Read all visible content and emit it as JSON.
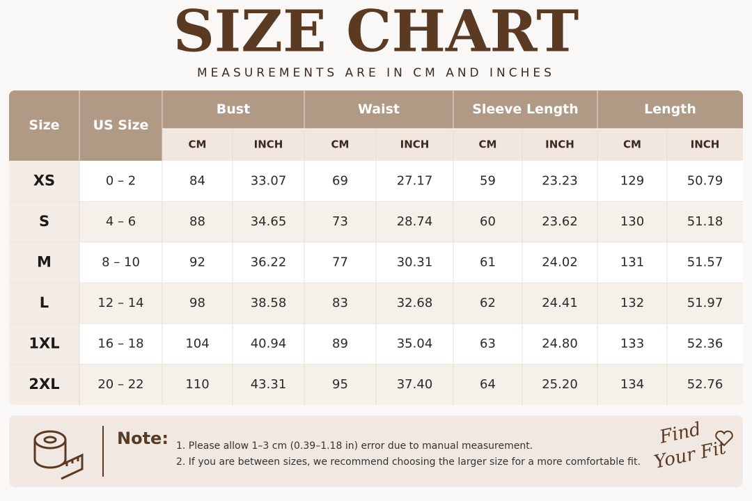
{
  "header": {
    "title": "SIZE CHART",
    "subtitle": "MEASUREMENTS ARE IN CM AND INCHES"
  },
  "table": {
    "columns": [
      "Size",
      "US Size"
    ],
    "groups": [
      {
        "label": "Bust",
        "sub": [
          "CM",
          "INCH"
        ]
      },
      {
        "label": "Waist",
        "sub": [
          "CM",
          "INCH"
        ]
      },
      {
        "label": "Sleeve Length",
        "sub": [
          "CM",
          "INCH"
        ]
      },
      {
        "label": "Length",
        "sub": [
          "CM",
          "INCH"
        ]
      }
    ],
    "rows": [
      [
        "XS",
        "0 – 2",
        "84",
        "33.07",
        "69",
        "27.17",
        "59",
        "23.23",
        "129",
        "50.79"
      ],
      [
        "S",
        "4 – 6",
        "88",
        "34.65",
        "73",
        "28.74",
        "60",
        "23.62",
        "130",
        "51.18"
      ],
      [
        "M",
        "8 – 10",
        "92",
        "36.22",
        "77",
        "30.31",
        "61",
        "24.02",
        "131",
        "51.57"
      ],
      [
        "L",
        "12 – 14",
        "98",
        "38.58",
        "83",
        "32.68",
        "62",
        "24.41",
        "132",
        "51.97"
      ],
      [
        "1XL",
        "16 – 18",
        "104",
        "40.94",
        "89",
        "35.04",
        "63",
        "24.80",
        "133",
        "52.36"
      ],
      [
        "2XL",
        "20 – 22",
        "110",
        "43.31",
        "95",
        "37.40",
        "64",
        "25.20",
        "134",
        "52.76"
      ]
    ]
  },
  "note": {
    "label": "Note:",
    "lines": [
      "1. Please allow 1–3 cm (0.39–1.18 in) error due to manual measurement.",
      "2. If you are between sizes, we recommend choosing the larger size for a more comfortable fit."
    ]
  },
  "badge": {
    "line1": "Find",
    "line2": "Your Fit"
  }
}
